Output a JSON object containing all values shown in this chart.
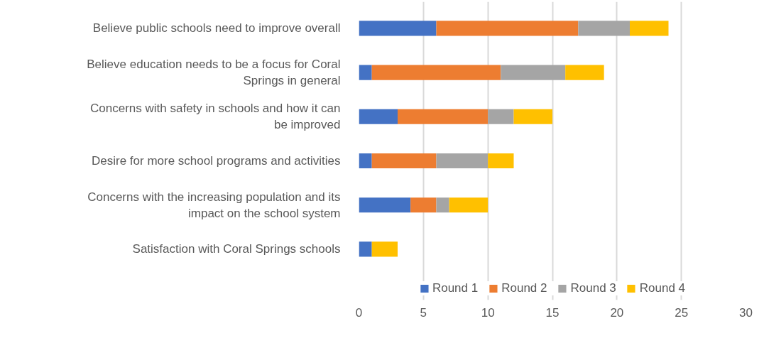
{
  "chart_data": {
    "type": "bar",
    "orientation": "horizontal",
    "stacked": true,
    "categories": [
      "Believe public schools need to improve overall",
      "Believe education needs to be a focus for Coral Springs in general",
      "Concerns with safety in schools and how it can be improved",
      "Desire for more school programs and activities",
      "Concerns with the increasing population and its impact on the school system",
      "Satisfaction with Coral Springs schools"
    ],
    "series": [
      {
        "name": "Round 1",
        "color": "#4472c4",
        "values": [
          6,
          1,
          3,
          1,
          4,
          1
        ]
      },
      {
        "name": "Round 2",
        "color": "#ed7d31",
        "values": [
          11,
          10,
          7,
          5,
          2,
          0
        ]
      },
      {
        "name": "Round 3",
        "color": "#a5a5a5",
        "values": [
          4,
          5,
          2,
          4,
          1,
          0
        ]
      },
      {
        "name": "Round 4",
        "color": "#ffc000",
        "values": [
          3,
          3,
          3,
          2,
          3,
          2
        ]
      }
    ],
    "xlim": [
      0,
      30
    ],
    "xticks": [
      0,
      5,
      10,
      15,
      20,
      25,
      30
    ],
    "grid": "x",
    "legend": "bottom"
  }
}
